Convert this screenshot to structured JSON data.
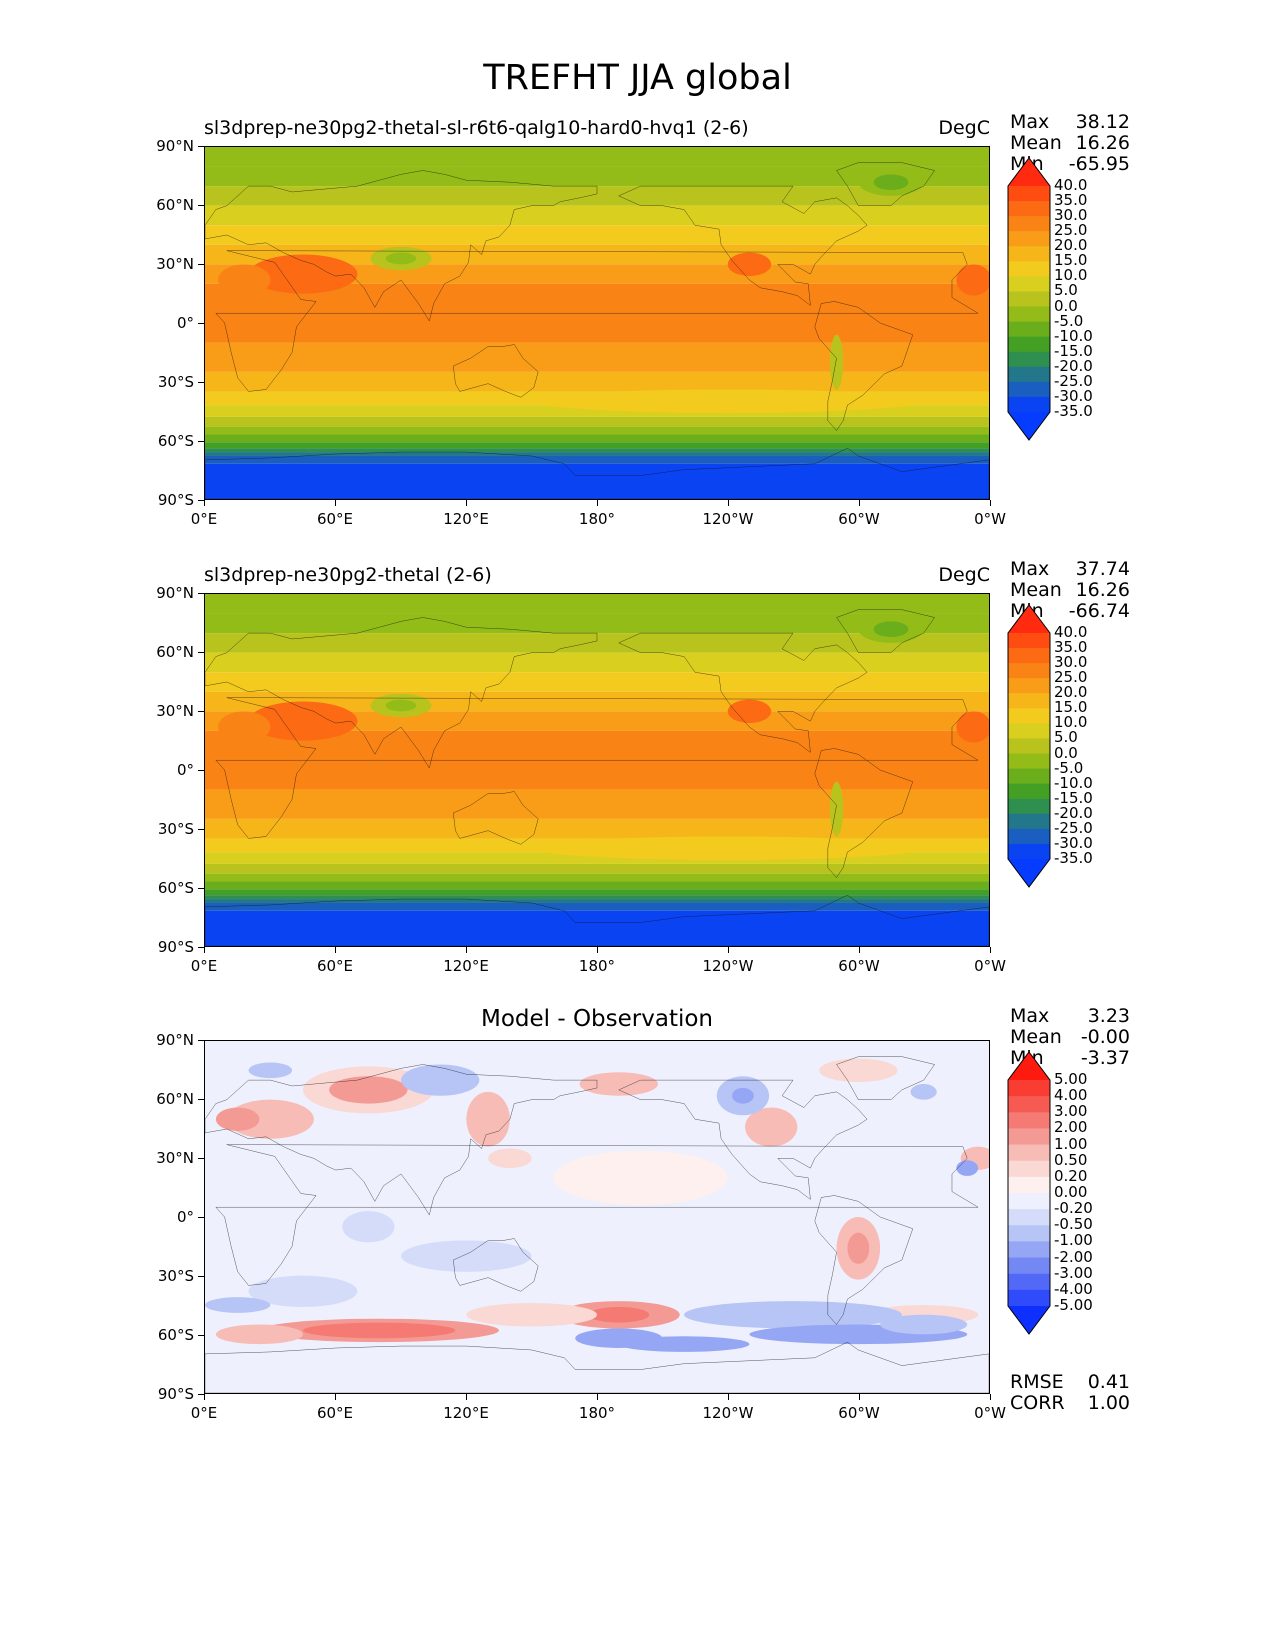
{
  "title": "TREFHT JJA global",
  "x_ticks": [
    "0°E",
    "60°E",
    "120°E",
    "180°",
    "120°W",
    "60°W",
    "0°W"
  ],
  "y_ticks": [
    "90°N",
    "60°N",
    "30°N",
    "0°",
    "30°S",
    "60°S",
    "90°S"
  ],
  "stat_labels": {
    "max": "Max",
    "mean": "Mean",
    "min": "Min",
    "rmse": "RMSE",
    "corr": "CORR"
  },
  "panels": [
    {
      "title": "sl3dprep-ne30pg2-thetal-sl-r6t6-qalg10-hard0-hvq1 (2-6)",
      "units": "DegC",
      "max": "38.12",
      "mean": "16.26",
      "min": "-65.95"
    },
    {
      "title": "sl3dprep-ne30pg2-thetal (2-6)",
      "units": "DegC",
      "max": "37.74",
      "mean": "16.26",
      "min": "-66.74"
    },
    {
      "title": "Model - Observation",
      "max": "3.23",
      "mean": "-0.00",
      "min": "-3.37",
      "rmse": "0.41",
      "corr": "1.00"
    }
  ],
  "colorbars": {
    "temperature": {
      "levels": [
        "40.0",
        "35.0",
        "30.0",
        "25.0",
        "20.0",
        "15.0",
        "10.0",
        "5.0",
        "0.0",
        "-5.0",
        "-10.0",
        "-15.0",
        "-20.0",
        "-25.0",
        "-30.0",
        "-35.0"
      ],
      "colors": [
        "#ff2a10",
        "#ff4d12",
        "#fc6a14",
        "#fa8315",
        "#f99d18",
        "#f6b61a",
        "#f2cb1e",
        "#d9cf1e",
        "#b8c41d",
        "#93bc18",
        "#6aae1c",
        "#44a025",
        "#2e8f4f",
        "#22788a",
        "#1a5fc0",
        "#0a44f2",
        "#053cff"
      ]
    },
    "difference": {
      "levels": [
        "5.00",
        "4.00",
        "3.00",
        "2.00",
        "1.00",
        "0.50",
        "0.20",
        "0.00",
        "-0.20",
        "-0.50",
        "-1.00",
        "-2.00",
        "-3.00",
        "-4.00",
        "-5.00"
      ],
      "colors": [
        "#ff1a10",
        "#fa3d33",
        "#f75a52",
        "#f47a73",
        "#f49a94",
        "#f7bcb6",
        "#fad8d4",
        "#fdf0ee",
        "#eef0fd",
        "#d4dcfa",
        "#b6c4f6",
        "#95a6f4",
        "#7488f4",
        "#5269f7",
        "#2f4bfb",
        "#0d30ff"
      ]
    }
  }
}
